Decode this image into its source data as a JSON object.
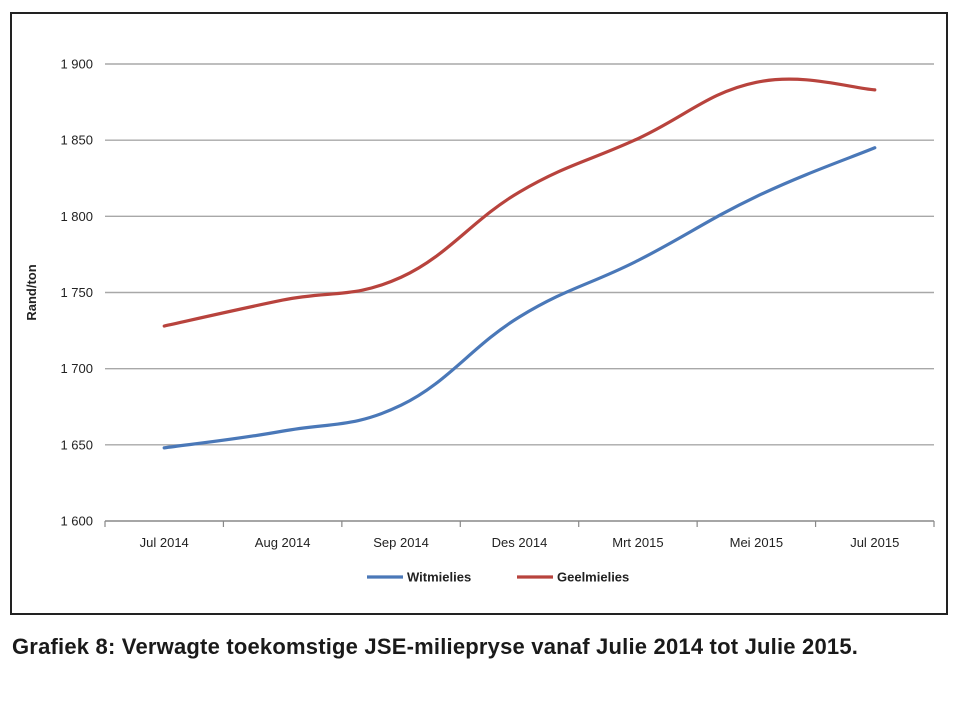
{
  "chart_data": {
    "type": "line",
    "categories": [
      "Jul 2014",
      "Aug 2014",
      "Sep 2014",
      "Des 2014",
      "Mrt 2015",
      "Mei 2015",
      "Jul 2015"
    ],
    "series": [
      {
        "name": "Witmielies",
        "color": "#4a78b8",
        "values": [
          1648,
          1659,
          1676,
          1734,
          1771,
          1813,
          1845
        ]
      },
      {
        "name": "Geelmielies",
        "color": "#b8433d",
        "values": [
          1728,
          1745,
          1760,
          1816,
          1851,
          1888,
          1883
        ]
      }
    ],
    "ylabel": "Rand/ton",
    "xlabel": "",
    "ylim": [
      1600,
      1900
    ],
    "yticks": [
      1600,
      1650,
      1700,
      1750,
      1800,
      1850,
      1900
    ],
    "ytick_labels": [
      "1 600",
      "1 650",
      "1 700",
      "1 750",
      "1 800",
      "1 850",
      "1 900"
    ],
    "grid": true,
    "legend_position": "bottom"
  },
  "caption": "Grafiek 8: Verwagte toekomstige JSE-miliepryse vanaf Julie 2014 tot Julie 2015."
}
